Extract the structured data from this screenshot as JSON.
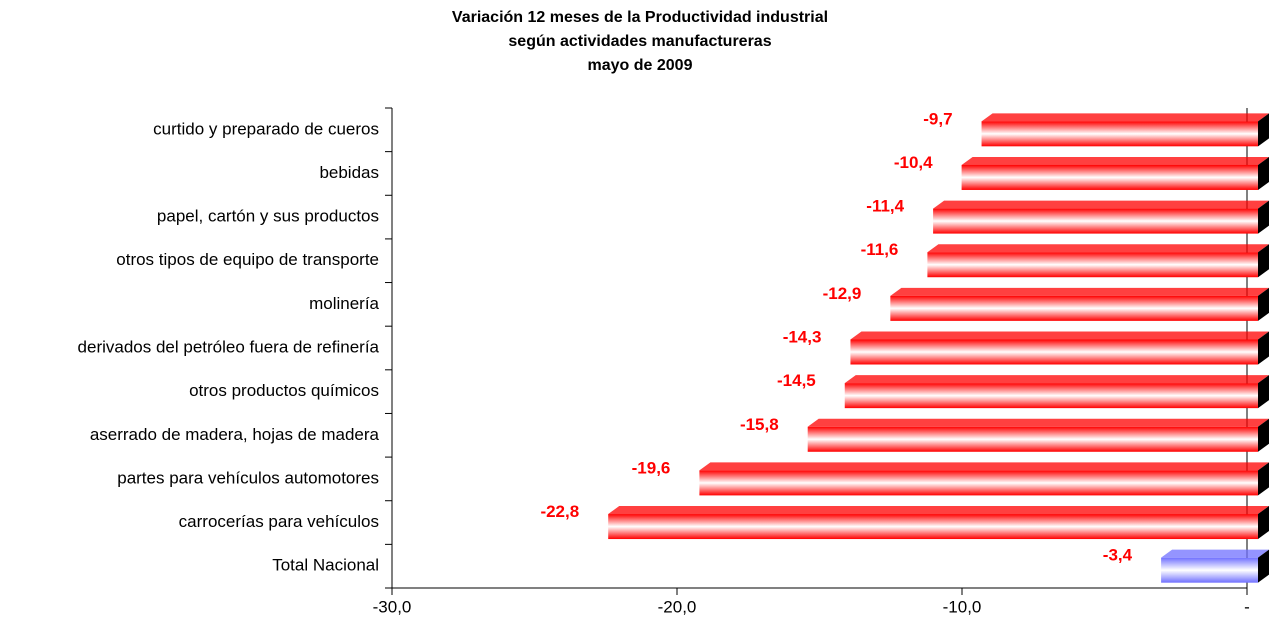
{
  "chart_data": {
    "type": "barh",
    "title": [
      "Variación 12 meses de la Productividad industrial",
      "según actividades manufactureras",
      "mayo de 2009"
    ],
    "categories": [
      "curtido y preparado de cueros",
      "bebidas",
      "papel, cartón y sus productos",
      "otros tipos de equipo de transporte",
      "molinería",
      "derivados del petróleo fuera de refinería",
      "otros productos químicos",
      "aserrado de madera, hojas de madera",
      "partes para vehículos automotores",
      "carrocerías para vehículos",
      "Total Nacional"
    ],
    "values": [
      -9.7,
      -10.4,
      -11.4,
      -11.6,
      -12.9,
      -14.3,
      -14.5,
      -15.8,
      -19.6,
      -22.8,
      -3.4
    ],
    "value_labels": [
      "-9,7",
      "-10,4",
      "-11,4",
      "-11,6",
      "-12,9",
      "-14,3",
      "-14,5",
      "-15,8",
      "-19,6",
      "-22,8",
      "-3,4"
    ],
    "colors": [
      "#ff0000",
      "#ff0000",
      "#ff0000",
      "#ff0000",
      "#ff0000",
      "#ff0000",
      "#ff0000",
      "#ff0000",
      "#ff0000",
      "#ff0000",
      "#7070ff"
    ],
    "xlim": [
      -30,
      0
    ],
    "xticks": [
      {
        "value": -30,
        "label": "-30,0"
      },
      {
        "value": -20,
        "label": "-20,0"
      },
      {
        "value": -10,
        "label": "-10,0"
      },
      {
        "value": 0,
        "label": "-"
      }
    ]
  }
}
